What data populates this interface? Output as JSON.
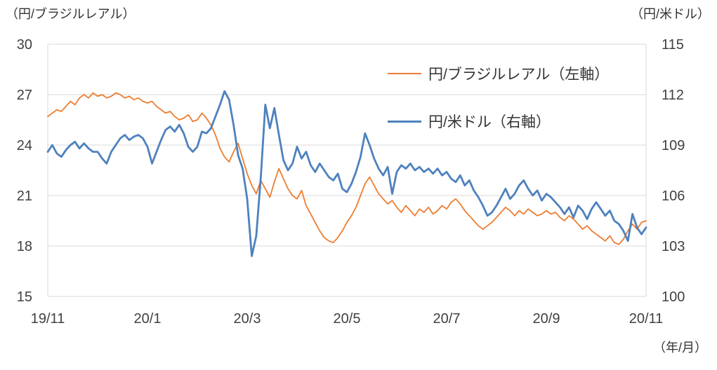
{
  "page": {
    "left_axis_unit": "（円/ブラジルレアル）",
    "right_axis_unit": "（円/米ドル）",
    "x_axis_unit": "（年/月）"
  },
  "legend": {
    "series1": "円/ブラジルレアル（左軸）",
    "series2": "円/米ドル（右軸）"
  },
  "colors": {
    "brl_line": "#ED7D31",
    "usd_line": "#4E81BD",
    "gridline": "#D9D9D9",
    "axis_text": "#404040"
  },
  "chart_data": {
    "type": "line",
    "title": "",
    "x_tick_labels": [
      "19/11",
      "20/1",
      "20/3",
      "20/5",
      "20/7",
      "20/9",
      "20/11"
    ],
    "xlabel": "（年/月）",
    "grid": true,
    "legend_position": "upper-right-inside",
    "left_axis": {
      "label": "（円/ブラジルレアル）",
      "min": 15,
      "max": 30,
      "ticks": [
        15,
        18,
        21,
        24,
        27,
        30
      ]
    },
    "right_axis": {
      "label": "（円/米ドル）",
      "min": 100,
      "max": 115,
      "ticks": [
        100,
        103,
        106,
        109,
        112,
        115
      ]
    },
    "series": [
      {
        "name": "円/ブラジルレアル（左軸）",
        "axis": "left",
        "color": "#ED7D31",
        "width": 1.8,
        "values": [
          25.7,
          25.9,
          26.1,
          26.0,
          26.3,
          26.6,
          26.4,
          26.8,
          27.0,
          26.8,
          27.1,
          26.9,
          27.0,
          26.8,
          26.9,
          27.1,
          27.0,
          26.8,
          26.9,
          26.7,
          26.8,
          26.6,
          26.5,
          26.6,
          26.3,
          26.1,
          25.9,
          26.0,
          25.7,
          25.5,
          25.6,
          25.8,
          25.4,
          25.5,
          25.9,
          25.6,
          25.2,
          24.6,
          23.8,
          23.3,
          23.0,
          23.6,
          24.1,
          23.2,
          22.3,
          21.6,
          21.1,
          21.9,
          21.4,
          20.9,
          21.8,
          22.6,
          22.0,
          21.4,
          21.0,
          20.8,
          21.3,
          20.4,
          19.9,
          19.4,
          18.9,
          18.5,
          18.3,
          18.2,
          18.5,
          18.9,
          19.4,
          19.8,
          20.3,
          21.0,
          21.7,
          22.1,
          21.6,
          21.1,
          20.8,
          20.5,
          20.7,
          20.3,
          20.0,
          20.4,
          20.1,
          19.8,
          20.2,
          20.0,
          20.3,
          19.9,
          20.1,
          20.4,
          20.2,
          20.6,
          20.8,
          20.5,
          20.1,
          19.8,
          19.5,
          19.2,
          19.0,
          19.2,
          19.4,
          19.7,
          20.0,
          20.3,
          20.1,
          19.8,
          20.1,
          19.9,
          20.2,
          20.0,
          19.8,
          19.9,
          20.1,
          19.9,
          20.0,
          19.7,
          19.5,
          19.8,
          19.6,
          19.3,
          19.0,
          19.2,
          18.9,
          18.7,
          18.5,
          18.3,
          18.6,
          18.2,
          18.1,
          18.4,
          18.9,
          19.3,
          19.0,
          19.4,
          19.5
        ]
      },
      {
        "name": "円/米ドル（右軸）",
        "axis": "right",
        "color": "#4E81BD",
        "width": 2.8,
        "values": [
          108.6,
          109.0,
          108.5,
          108.3,
          108.7,
          109.0,
          109.2,
          108.8,
          109.1,
          108.8,
          108.6,
          108.6,
          108.2,
          107.9,
          108.6,
          109.0,
          109.4,
          109.6,
          109.3,
          109.5,
          109.6,
          109.4,
          108.9,
          107.9,
          108.6,
          109.3,
          109.9,
          110.1,
          109.8,
          110.2,
          109.7,
          108.9,
          108.6,
          108.9,
          109.8,
          109.7,
          110.0,
          110.7,
          111.4,
          112.2,
          111.7,
          110.2,
          108.4,
          107.6,
          105.8,
          102.4,
          103.6,
          107.1,
          111.4,
          110.0,
          111.2,
          109.6,
          108.1,
          107.5,
          107.9,
          108.9,
          108.2,
          108.6,
          107.8,
          107.4,
          107.9,
          107.5,
          107.1,
          106.9,
          107.3,
          106.4,
          106.2,
          106.7,
          107.4,
          108.3,
          109.7,
          109.0,
          108.2,
          107.6,
          107.2,
          107.7,
          106.1,
          107.4,
          107.8,
          107.6,
          107.9,
          107.5,
          107.7,
          107.4,
          107.6,
          107.3,
          107.6,
          107.2,
          107.4,
          107.0,
          106.8,
          107.2,
          106.6,
          106.9,
          106.3,
          105.9,
          105.4,
          104.8,
          105.0,
          105.4,
          105.9,
          106.4,
          105.8,
          106.1,
          106.6,
          106.9,
          106.4,
          106.0,
          106.3,
          105.7,
          106.1,
          105.9,
          105.6,
          105.3,
          104.9,
          105.3,
          104.7,
          105.4,
          105.1,
          104.6,
          105.2,
          105.6,
          105.2,
          104.8,
          105.1,
          104.5,
          104.3,
          103.9,
          103.3,
          104.9,
          104.1,
          103.7,
          104.1
        ]
      }
    ]
  }
}
